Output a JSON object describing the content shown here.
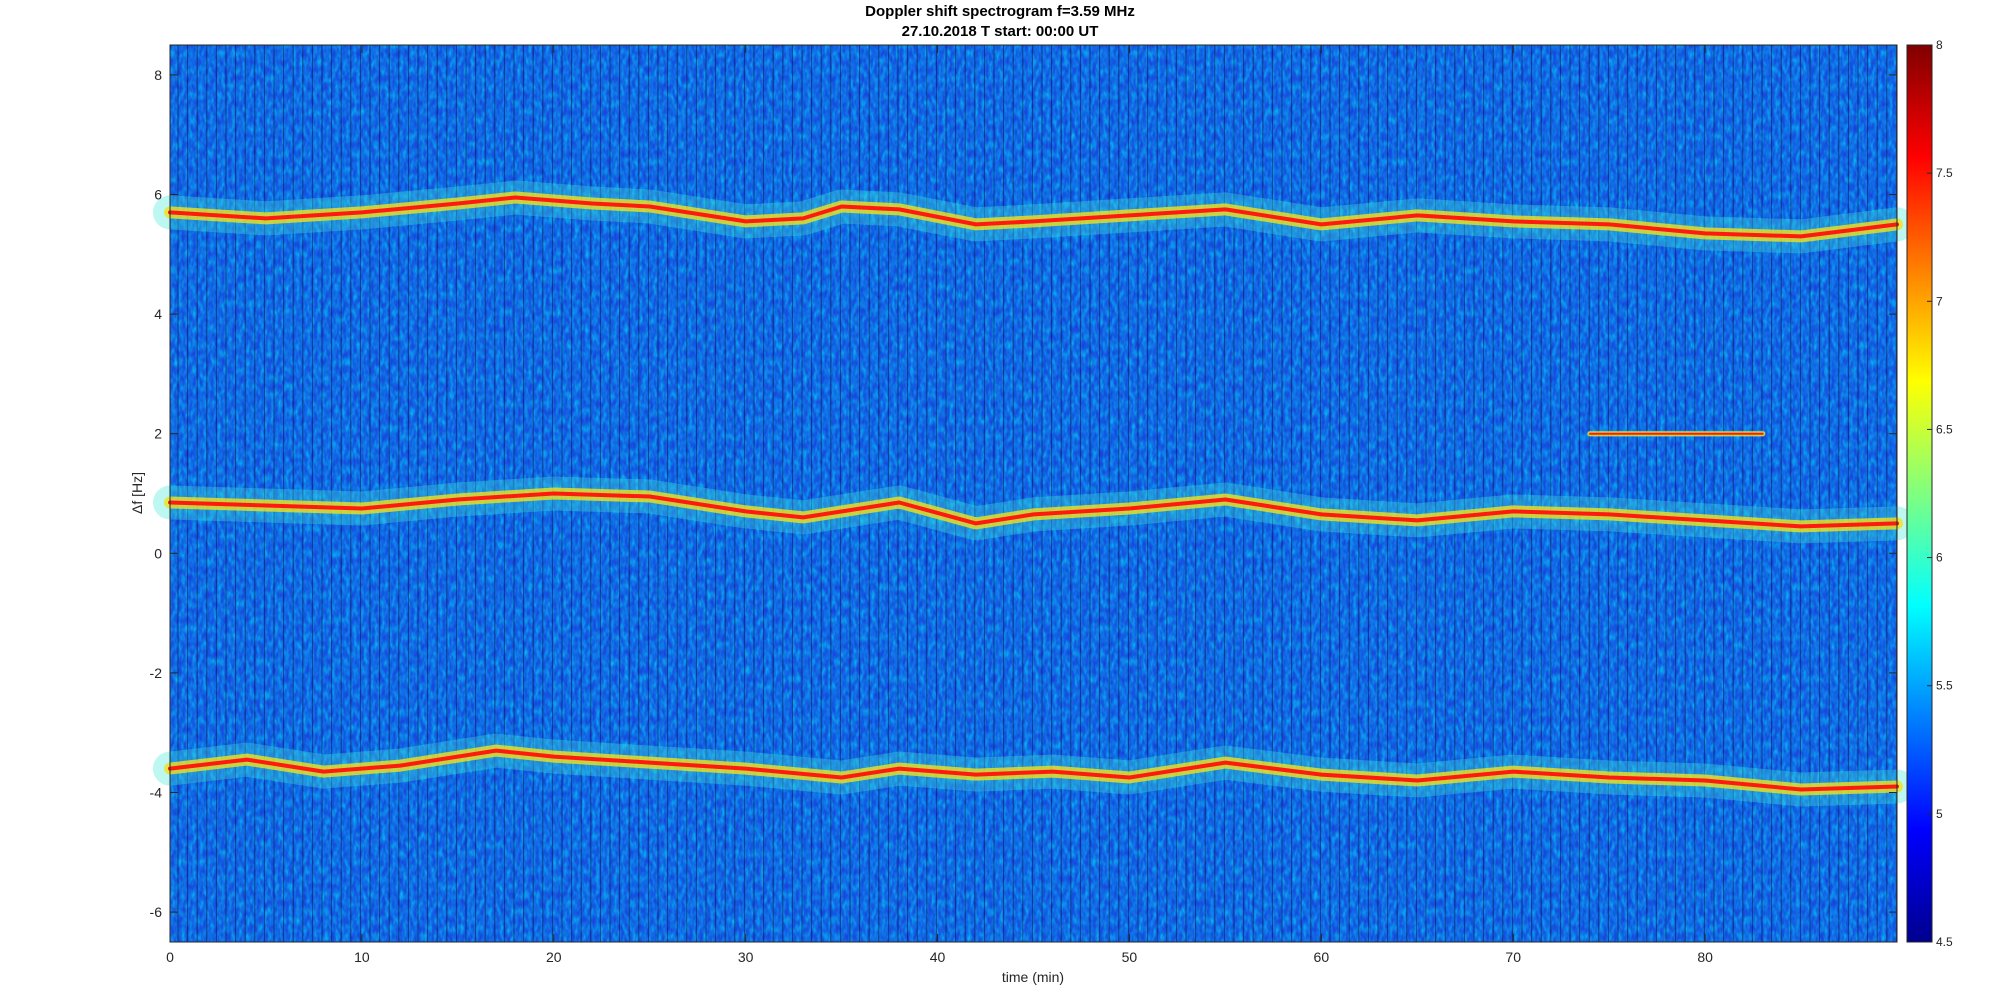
{
  "chart_data": {
    "type": "heatmap",
    "title": "Doppler shift spectrogram f=3.59 MHz",
    "subtitle": "27.10.2018   T start: 00:00 UT",
    "xlabel": "time (min)",
    "ylabel": "Δf [Hz]",
    "xlim": [
      0,
      90
    ],
    "ylim": [
      -6.5,
      8.5
    ],
    "x_ticks": [
      0,
      10,
      20,
      30,
      40,
      50,
      60,
      70,
      80
    ],
    "x_tick_labels": [
      "0",
      "10",
      "20",
      "30",
      "40",
      "50",
      "60",
      "70",
      "80"
    ],
    "y_ticks": [
      -6,
      -4,
      -2,
      0,
      2,
      4,
      6,
      8
    ],
    "y_tick_labels": [
      "-6",
      "-4",
      "-2",
      "0",
      "2",
      "4",
      "6",
      "8"
    ],
    "colorbar": {
      "range": [
        4.5,
        8
      ],
      "ticks": [
        4.5,
        5,
        5.5,
        6,
        6.5,
        7,
        7.5,
        8
      ],
      "tick_labels": [
        "4.5",
        "5",
        "5.5",
        "6",
        "6.5",
        "7",
        "7.5",
        "8"
      ],
      "colormap": "jet"
    },
    "traces": [
      {
        "t": [
          0,
          5,
          10,
          15,
          18,
          22,
          25,
          30,
          33,
          35,
          38,
          42,
          45,
          50,
          55,
          60,
          65,
          70,
          75,
          80,
          85,
          90
        ],
        "df": [
          5.7,
          5.6,
          5.7,
          5.85,
          5.95,
          5.85,
          5.8,
          5.55,
          5.6,
          5.8,
          5.75,
          5.5,
          5.55,
          5.65,
          5.75,
          5.5,
          5.65,
          5.55,
          5.5,
          5.35,
          5.3,
          5.5
        ]
      },
      {
        "t": [
          0,
          5,
          10,
          15,
          20,
          25,
          30,
          33,
          38,
          42,
          45,
          50,
          55,
          60,
          65,
          70,
          75,
          80,
          85,
          90
        ],
        "df": [
          0.85,
          0.8,
          0.75,
          0.9,
          1.0,
          0.95,
          0.7,
          0.6,
          0.85,
          0.5,
          0.65,
          0.75,
          0.9,
          0.65,
          0.55,
          0.7,
          0.65,
          0.55,
          0.45,
          0.5
        ]
      },
      {
        "t": [
          0,
          4,
          8,
          12,
          17,
          20,
          25,
          30,
          35,
          38,
          42,
          46,
          50,
          55,
          60,
          65,
          70,
          75,
          80,
          85,
          90
        ],
        "df": [
          -3.6,
          -3.45,
          -3.65,
          -3.55,
          -3.3,
          -3.4,
          -3.5,
          -3.6,
          -3.75,
          -3.6,
          -3.7,
          -3.65,
          -3.75,
          -3.5,
          -3.7,
          -3.8,
          -3.65,
          -3.75,
          -3.8,
          -3.95,
          -3.9
        ]
      },
      {
        "t": [
          74,
          83
        ],
        "df": [
          2.0,
          2.0
        ]
      }
    ]
  }
}
